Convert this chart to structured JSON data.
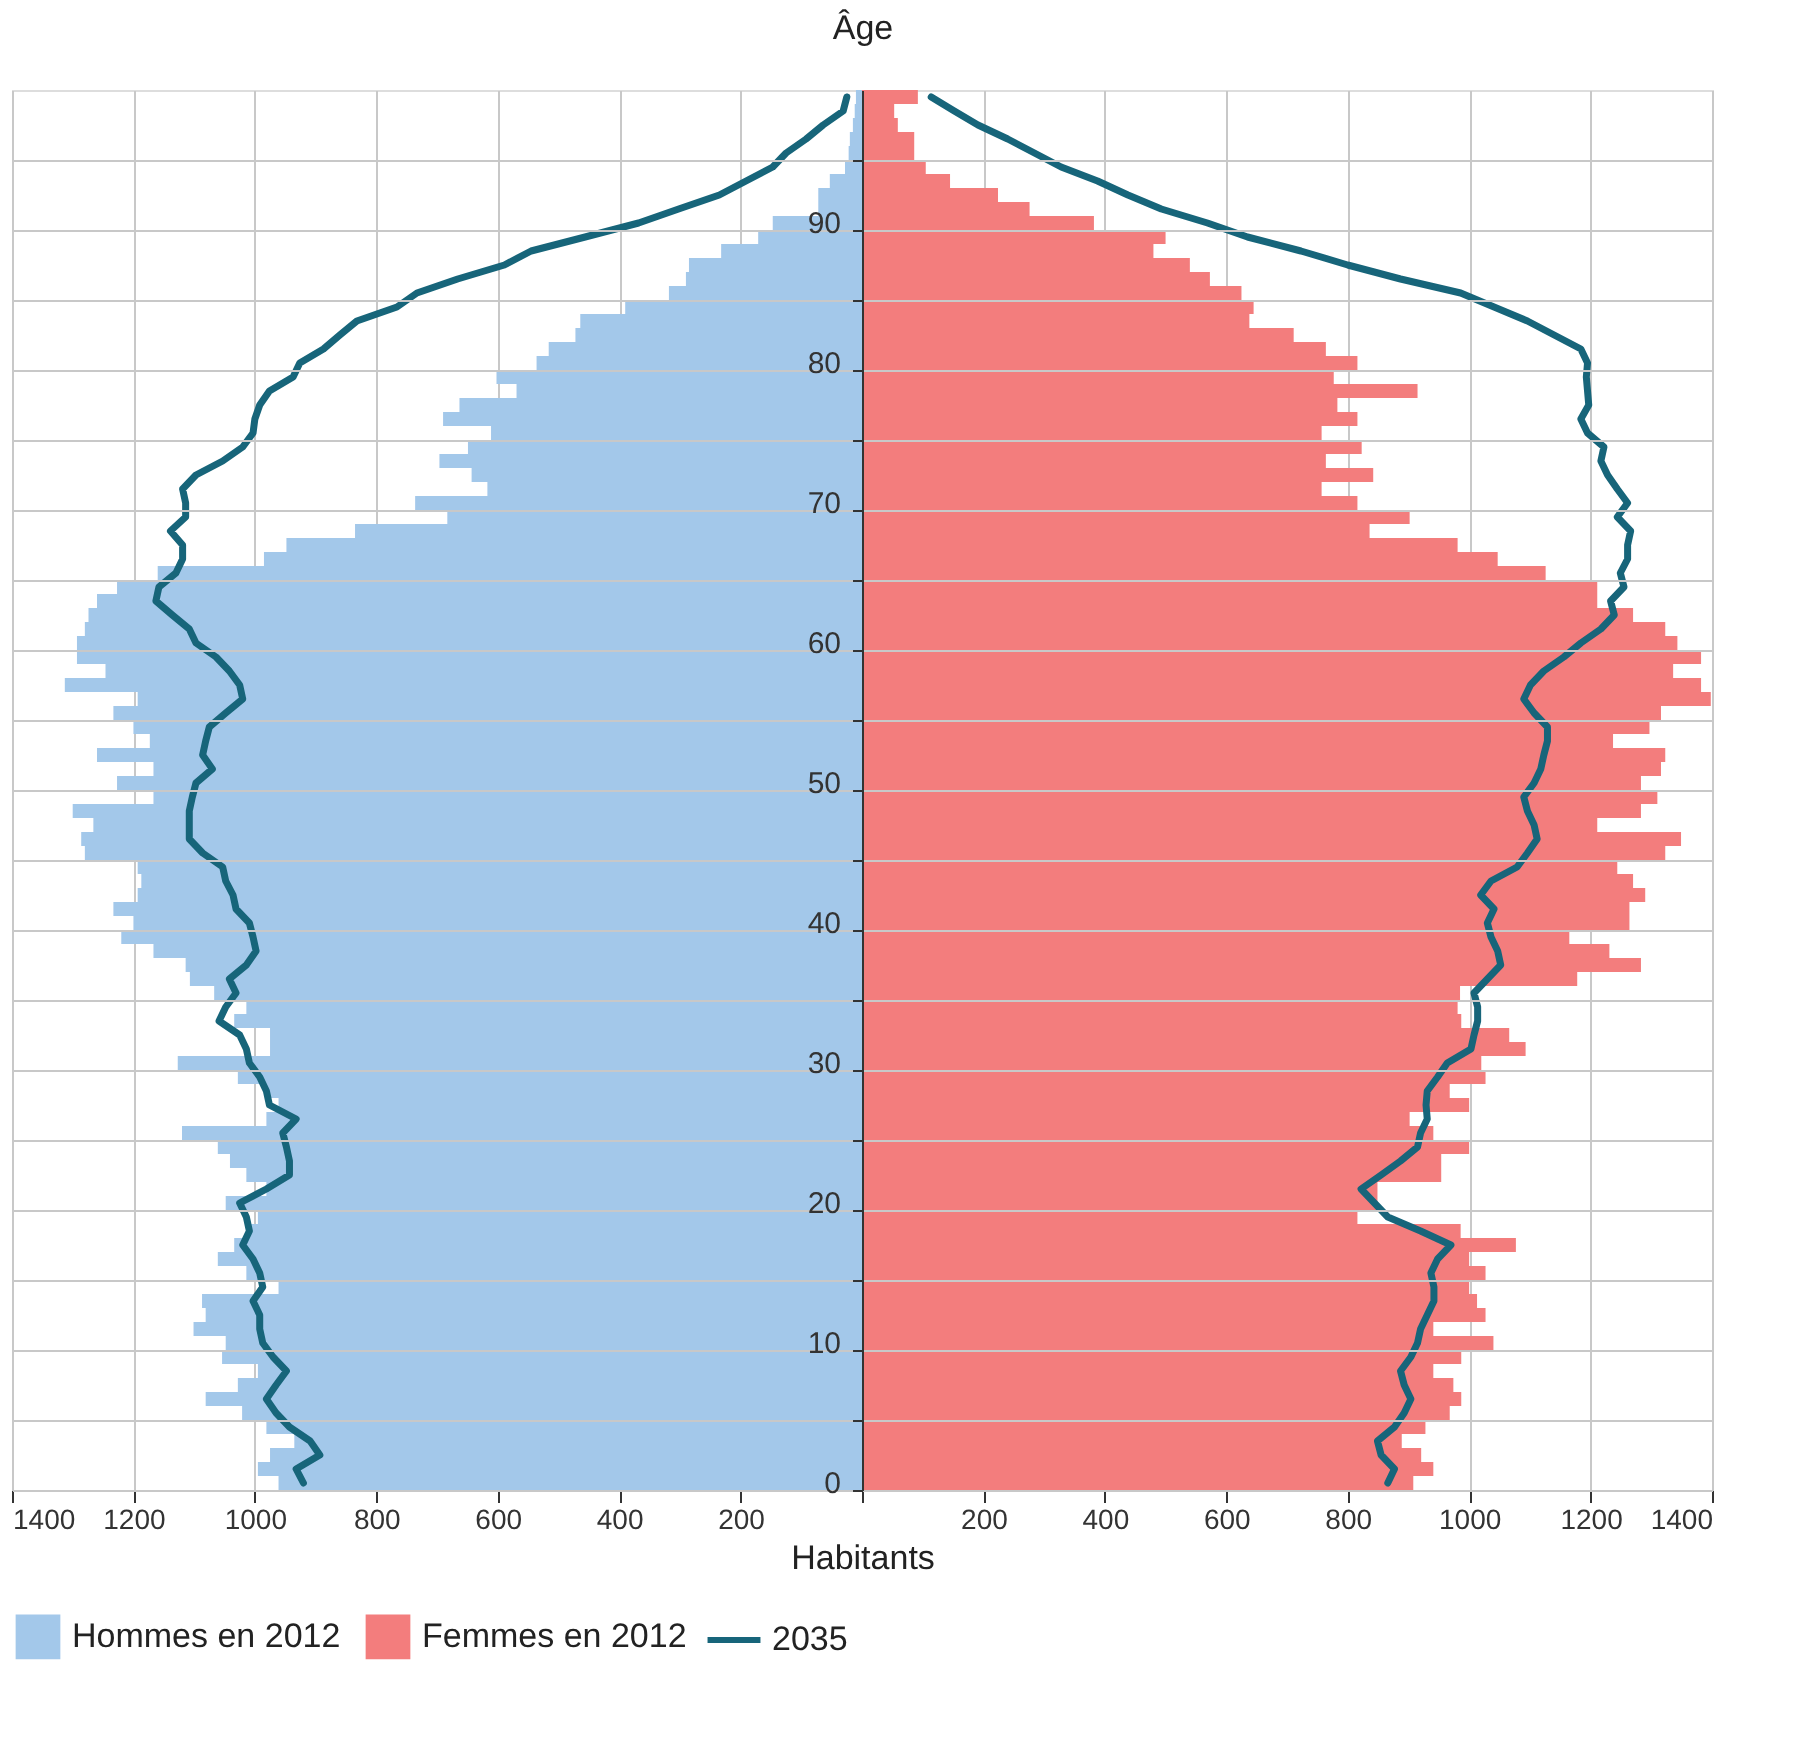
{
  "chart_data": {
    "type": "bar",
    "orientation": "horizontal",
    "ylabel": "Âge",
    "xlabel": "Habitants",
    "categories": [
      null,
      null,
      null,
      null,
      null,
      null,
      null,
      null,
      null,
      "90",
      null,
      null,
      null,
      null,
      null,
      null,
      null,
      null,
      null,
      "80",
      null,
      null,
      null,
      null,
      null,
      null,
      null,
      null,
      null,
      "70",
      null,
      null,
      null,
      null,
      null,
      null,
      null,
      null,
      null,
      "60",
      null,
      null,
      null,
      null,
      null,
      null,
      null,
      null,
      null,
      "50",
      null,
      null,
      null,
      null,
      null,
      null,
      null,
      null,
      null,
      "40",
      null,
      null,
      null,
      null,
      null,
      null,
      null,
      null,
      null,
      "30",
      null,
      null,
      null,
      null,
      null,
      null,
      null,
      null,
      null,
      "20",
      null,
      null,
      null,
      null,
      null,
      null,
      null,
      null,
      null,
      "10",
      null,
      null,
      null,
      null,
      null,
      null,
      null,
      null,
      null,
      "0"
    ],
    "xlim": [
      -1400,
      1400
    ],
    "xticks": [
      {
        "value": -1400,
        "label": "1400"
      },
      {
        "value": -1200,
        "label": "1200"
      },
      {
        "value": -1000,
        "label": "1000"
      },
      {
        "value": -800,
        "label": "800"
      },
      {
        "value": -600,
        "label": "600"
      },
      {
        "value": -400,
        "label": "400"
      },
      {
        "value": -200,
        "label": "200"
      },
      {
        "value": 0,
        "label": null
      },
      200,
      400,
      600,
      800,
      1000,
      1200,
      1400
    ],
    "grid": true,
    "legend": "bottom",
    "stacked": true,
    "series": [
      {
        "name": "Hommes en 2012",
        "color": "#a3c8ea",
        "values": [
          -10,
          -12,
          -15,
          -20,
          -22,
          -28,
          -53,
          -72,
          -72,
          -147,
          -171,
          -232,
          -285,
          -290,
          -318,
          -390,
          -464,
          -472,
          -516,
          -536,
          -602,
          -569,
          -663,
          -690,
          -611,
          -649,
          -696,
          -643,
          -617,
          -736,
          -683,
          -835,
          -948,
          -985,
          -1160,
          -1227,
          -1260,
          -1274,
          -1280,
          -1293,
          -1293,
          -1246,
          -1313,
          -1193,
          -1233,
          -1200,
          -1173,
          -1260,
          -1167,
          -1227,
          -1167,
          -1300,
          -1266,
          -1286,
          -1280,
          -1193,
          -1187,
          -1193,
          -1233,
          -1200,
          -1220,
          -1167,
          -1114,
          -1107,
          -1067,
          -1014,
          -1034,
          -975,
          -975,
          -1127,
          -1028,
          -981,
          -961,
          -981,
          -1120,
          -1061,
          -1041,
          -1014,
          -981,
          -1048,
          -995,
          -1008,
          -1034,
          -1061,
          -1014,
          -961,
          -1087,
          -1081,
          -1101,
          -1048,
          -1054,
          -995,
          -1028,
          -1081,
          -1021,
          -981,
          -935,
          -975,
          -995,
          -961
        ]
      },
      {
        "name": "Femmes en 2012",
        "color": "#f37d7d",
        "values": [
          92,
          53,
          59,
          86,
          86,
          105,
          145,
          224,
          276,
          382,
          500,
          480,
          540,
          573,
          625,
          645,
          638,
          711,
          764,
          816,
          777,
          915,
          783,
          816,
          757,
          823,
          764,
          842,
          757,
          816,
          902,
          836,
          981,
          1047,
          1126,
          1211,
          1211,
          1270,
          1323,
          1343,
          1382,
          1336,
          1382,
          1398,
          1316,
          1297,
          1237,
          1323,
          1316,
          1283,
          1310,
          1283,
          1211,
          1349,
          1323,
          1244,
          1270,
          1290,
          1264,
          1264,
          1165,
          1231,
          1283,
          1178,
          985,
          981,
          987,
          1066,
          1093,
          1020,
          1027,
          968,
          1000,
          902,
          941,
          1000,
          954,
          954,
          849,
          849,
          816,
          986,
          1077,
          1000,
          1027,
          1000,
          1013,
          1027,
          941,
          1040,
          987,
          941,
          974,
          987,
          968,
          928,
          889,
          921,
          941,
          908
        ]
      },
      {
        "name": "2035",
        "type": "line",
        "color": "#17657a",
        "values": [
          -25,
          -31,
          -64,
          -92,
          -125,
          -147,
          -191,
          -235,
          -302,
          -368,
          -456,
          -545,
          -589,
          -666,
          -733,
          -766,
          -832,
          -860,
          -887,
          -926,
          -937,
          -976,
          -992,
          -1000,
          -1003,
          -1020,
          -1053,
          -1097,
          -1119,
          -1114,
          -1114,
          -1139,
          -1119,
          -1119,
          -1130,
          -1158,
          -1163,
          -1136,
          -1108,
          -1097,
          -1064,
          -1042,
          -1025,
          -1020,
          -1048,
          -1075,
          -1081,
          -1086,
          -1070,
          -1097,
          -1103,
          -1108,
          -1108,
          -1108,
          -1086,
          -1053,
          -1048,
          -1036,
          -1031,
          -1009,
          -1003,
          -998,
          -1014,
          -1042,
          -1031,
          -1048,
          -1059,
          -1025,
          -1014,
          -1009,
          -992,
          -981,
          -976,
          -932,
          -954,
          -948,
          -943,
          -943,
          -981,
          -1025,
          -1014,
          -1009,
          -1020,
          -1003,
          -992,
          -987,
          -1003,
          -992,
          -992,
          -987,
          -970,
          -948,
          -965,
          -981,
          -965,
          -943,
          -909,
          -893,
          -932,
          -920
        ]
      },
      {
        "type": "line",
        "color": "#17657a",
        "values": [
          114,
          152,
          191,
          240,
          284,
          328,
          388,
          438,
          493,
          569,
          635,
          723,
          800,
          887,
          986,
          1041,
          1096,
          1140,
          1184,
          1195,
          1193,
          1195,
          1197,
          1184,
          1195,
          1222,
          1217,
          1228,
          1244,
          1261,
          1244,
          1266,
          1261,
          1261,
          1249,
          1255,
          1233,
          1239,
          1217,
          1184,
          1156,
          1123,
          1101,
          1090,
          1107,
          1129,
          1129,
          1123,
          1118,
          1107,
          1090,
          1096,
          1107,
          1112,
          1096,
          1079,
          1036,
          1019,
          1041,
          1030,
          1036,
          1047,
          1052,
          1030,
          1008,
          1014,
          1014,
          1008,
          1003,
          964,
          948,
          931,
          929,
          931,
          920,
          915,
          887,
          855,
          822,
          844,
          866,
          920,
          970,
          948,
          937,
          942,
          942,
          931,
          920,
          915,
          904,
          887,
          893,
          904,
          893,
          877,
          849,
          855,
          877,
          866
        ]
      }
    ]
  }
}
